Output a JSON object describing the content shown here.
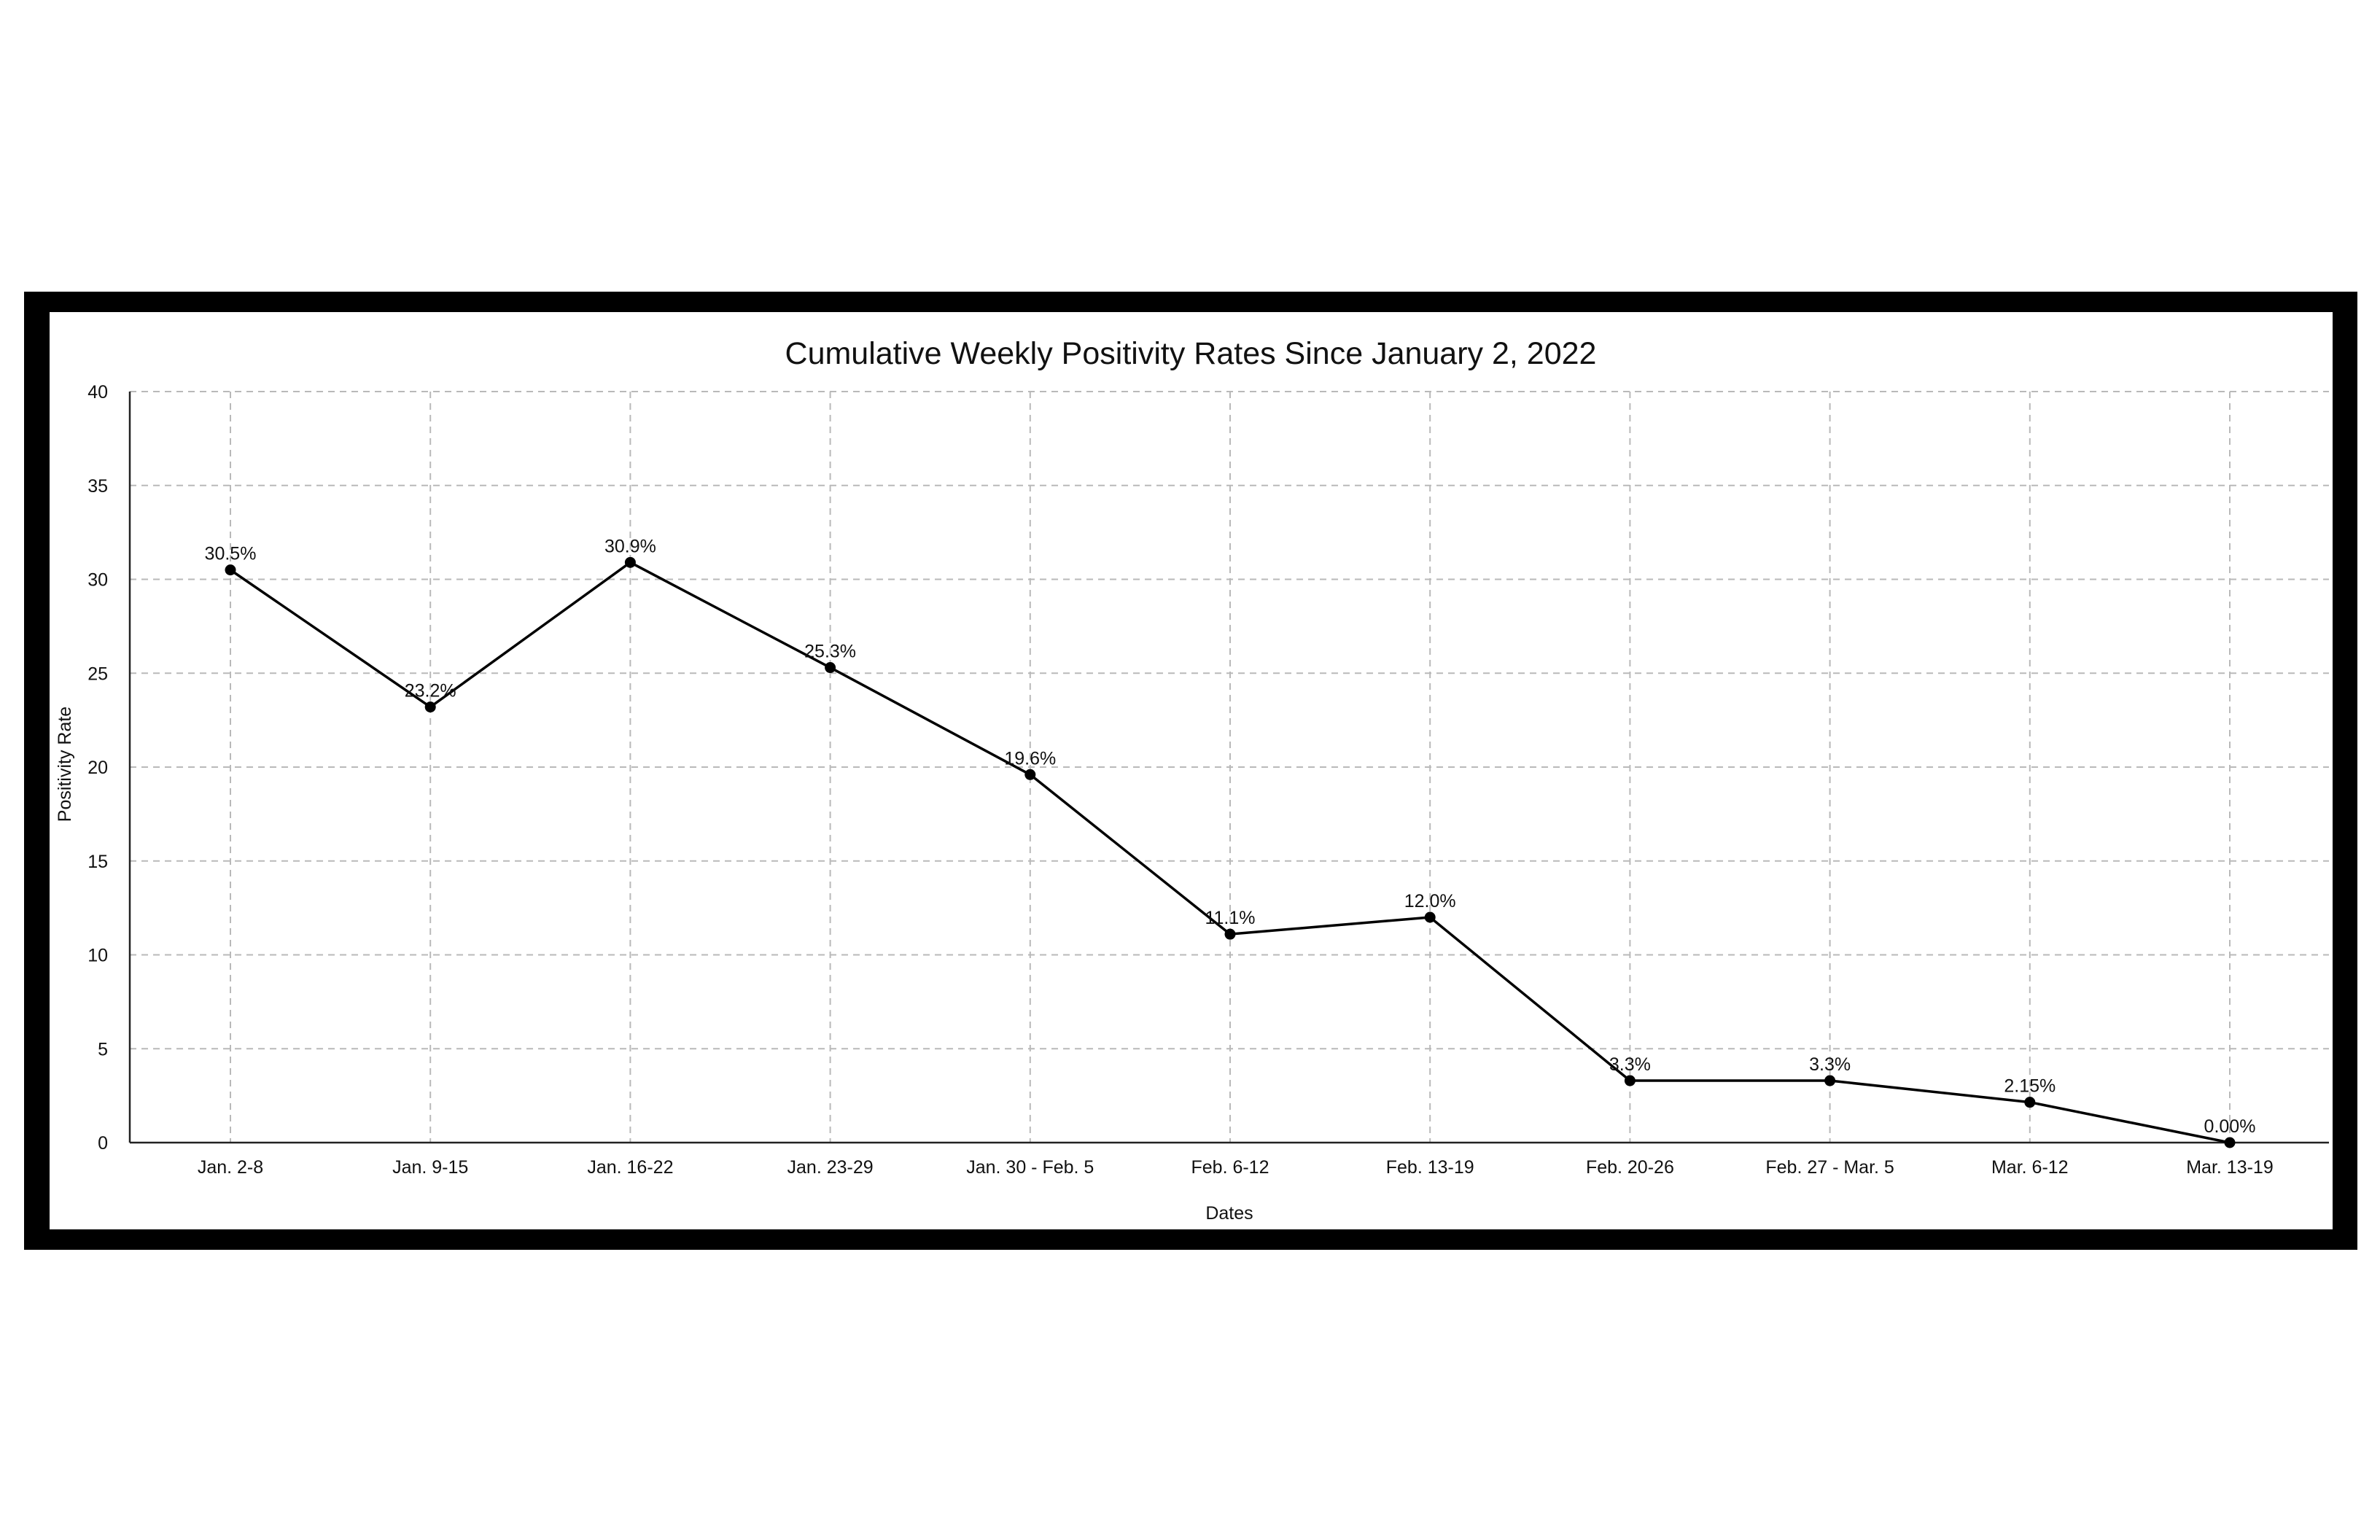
{
  "chart_data": {
    "type": "line",
    "title": "Cumulative Weekly Positivity Rates Since January 2, 2022",
    "xlabel": "Dates",
    "ylabel": "Positivity Rate",
    "categories": [
      "Jan. 2-8",
      "Jan. 9-15",
      "Jan. 16-22",
      "Jan. 23-29",
      "Jan. 30 - Feb. 5",
      "Feb. 6-12",
      "Feb. 13-19",
      "Feb. 20-26",
      "Feb. 27 - Mar. 5",
      "Mar. 6-12",
      "Mar. 13-19"
    ],
    "series": [
      {
        "values": [
          30.5,
          23.2,
          30.9,
          25.3,
          19.6,
          11.1,
          12.0,
          3.3,
          3.3,
          2.15,
          0.0
        ],
        "data_labels": [
          "30.5%",
          "23.2%",
          "30.9%",
          "25.3%",
          "19.6%",
          "11.1%",
          "12.0%",
          "3.3%",
          "3.3%",
          "2.15%",
          "0.00%"
        ]
      }
    ],
    "ylim": [
      0,
      40
    ],
    "yticks": [
      "0",
      "5",
      "10",
      "15",
      "20",
      "25",
      "30",
      "35",
      "40"
    ],
    "grid": true,
    "legend": "none",
    "line_color": "#000000",
    "grid_color": "#b9b9b9",
    "frame_color": "#000000"
  }
}
